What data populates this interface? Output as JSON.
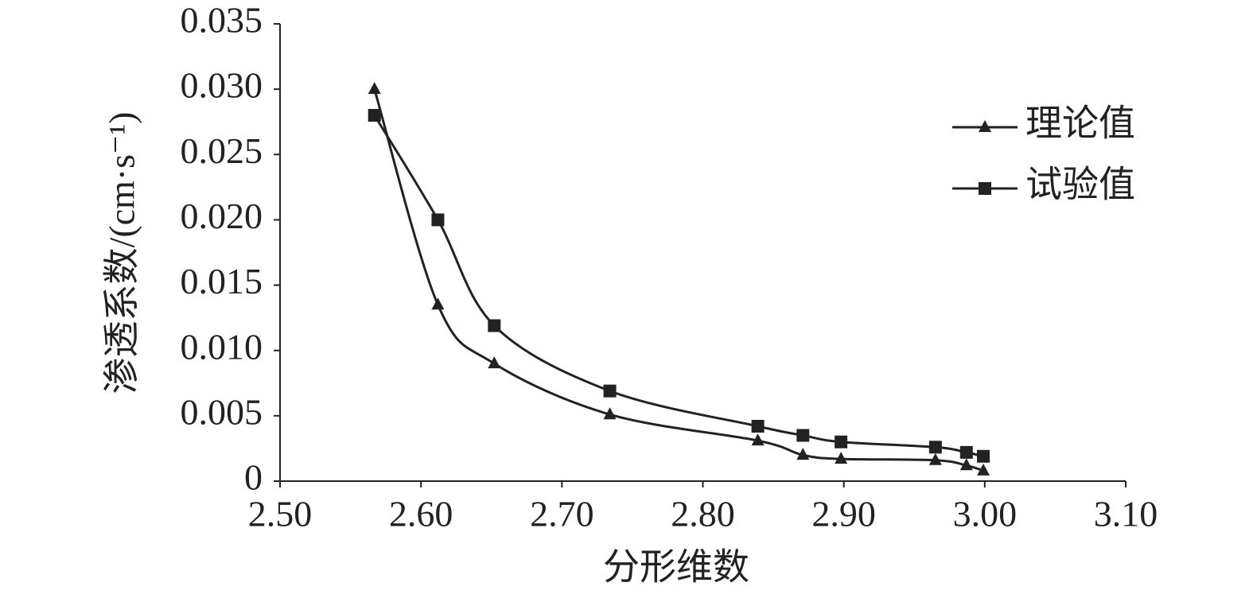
{
  "chart_data": {
    "type": "line",
    "x_label": "分形维数",
    "y_label": "渗透系数/(cm·s⁻¹)",
    "x": [
      2.567,
      2.612,
      2.652,
      2.734,
      2.839,
      2.871,
      2.898,
      2.965,
      2.987,
      2.999
    ],
    "series": [
      {
        "name": "理论值",
        "color": "#222222",
        "marker": "triangle",
        "values": [
          0.03,
          0.0135,
          0.009,
          0.0051,
          0.0031,
          0.002,
          0.0017,
          0.0016,
          0.0012,
          0.0008
        ]
      },
      {
        "name": "试验值",
        "color": "#222222",
        "marker": "square",
        "values": [
          0.028,
          0.02,
          0.0119,
          0.0069,
          0.0042,
          0.0035,
          0.003,
          0.0026,
          0.0022,
          0.0019
        ]
      }
    ],
    "xlim": [
      2.5,
      3.1
    ],
    "xticks": [
      {
        "value": 2.5,
        "label": "2.50"
      },
      {
        "value": 2.6,
        "label": "2.60"
      },
      {
        "value": 2.7,
        "label": "2.70"
      },
      {
        "value": 2.8,
        "label": "2.80"
      },
      {
        "value": 2.9,
        "label": "2.90"
      },
      {
        "value": 3.0,
        "label": "3.00"
      },
      {
        "value": 3.1,
        "label": "3.10"
      }
    ],
    "ylim": [
      0,
      0.035
    ],
    "yticks": [
      0,
      0.005,
      {
        "value": 0.01,
        "label": "0.010"
      },
      0.015,
      {
        "value": 0.02,
        "label": "0.020"
      },
      0.025,
      {
        "value": 0.03,
        "label": "0.030"
      },
      0.035
    ],
    "grid": false,
    "legend": "upper-right",
    "smooth": true
  }
}
